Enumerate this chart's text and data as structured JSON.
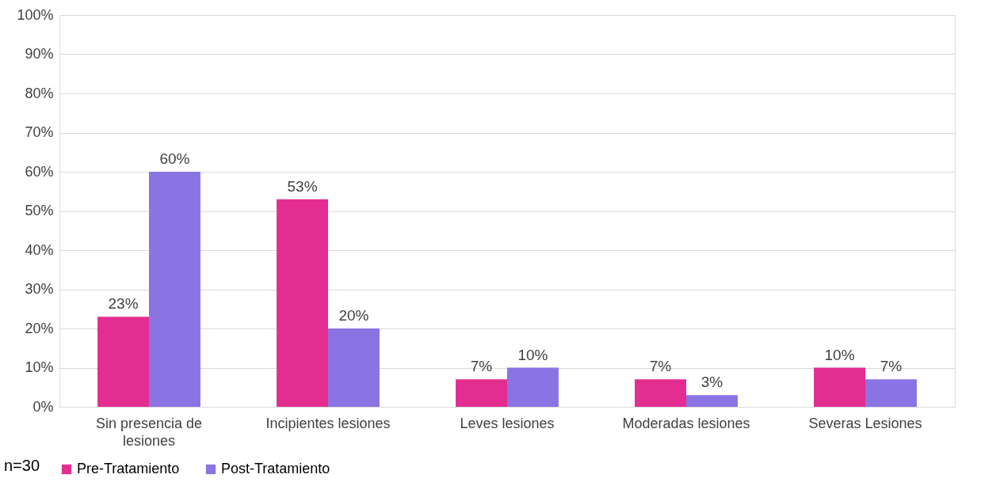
{
  "chart_data": {
    "type": "bar",
    "categories": [
      "Sin presencia de lesiones",
      "Incipientes lesiones",
      "Leves lesiones",
      "Moderadas lesiones",
      "Severas  Lesiones"
    ],
    "series": [
      {
        "name": "Pre-Tratamiento",
        "color": "#e32d91",
        "values": [
          23,
          53,
          7,
          7,
          10
        ],
        "value_labels": [
          "23%",
          "53%",
          "7%",
          "7%",
          "10%"
        ]
      },
      {
        "name": "Post-Tratamiento",
        "color": "#8a73e3",
        "values": [
          60,
          20,
          10,
          3,
          7
        ],
        "value_labels": [
          "60%",
          "20%",
          "10%",
          "3%",
          "7%"
        ]
      }
    ],
    "ylim": [
      0,
      100
    ],
    "yticks": [
      {
        "value": 0,
        "label": "0%"
      },
      {
        "value": 10,
        "label": "10%"
      },
      {
        "value": 20,
        "label": "20%"
      },
      {
        "value": 30,
        "label": "30%"
      },
      {
        "value": 40,
        "label": "40%"
      },
      {
        "value": 50,
        "label": "50%"
      },
      {
        "value": 60,
        "label": "60%"
      },
      {
        "value": 70,
        "label": "70%"
      },
      {
        "value": 80,
        "label": "80%"
      },
      {
        "value": 90,
        "label": "90%"
      },
      {
        "value": 100,
        "label": "100%"
      }
    ],
    "grid": "y",
    "legend": "bottom",
    "annotations": [
      "n=30"
    ]
  }
}
